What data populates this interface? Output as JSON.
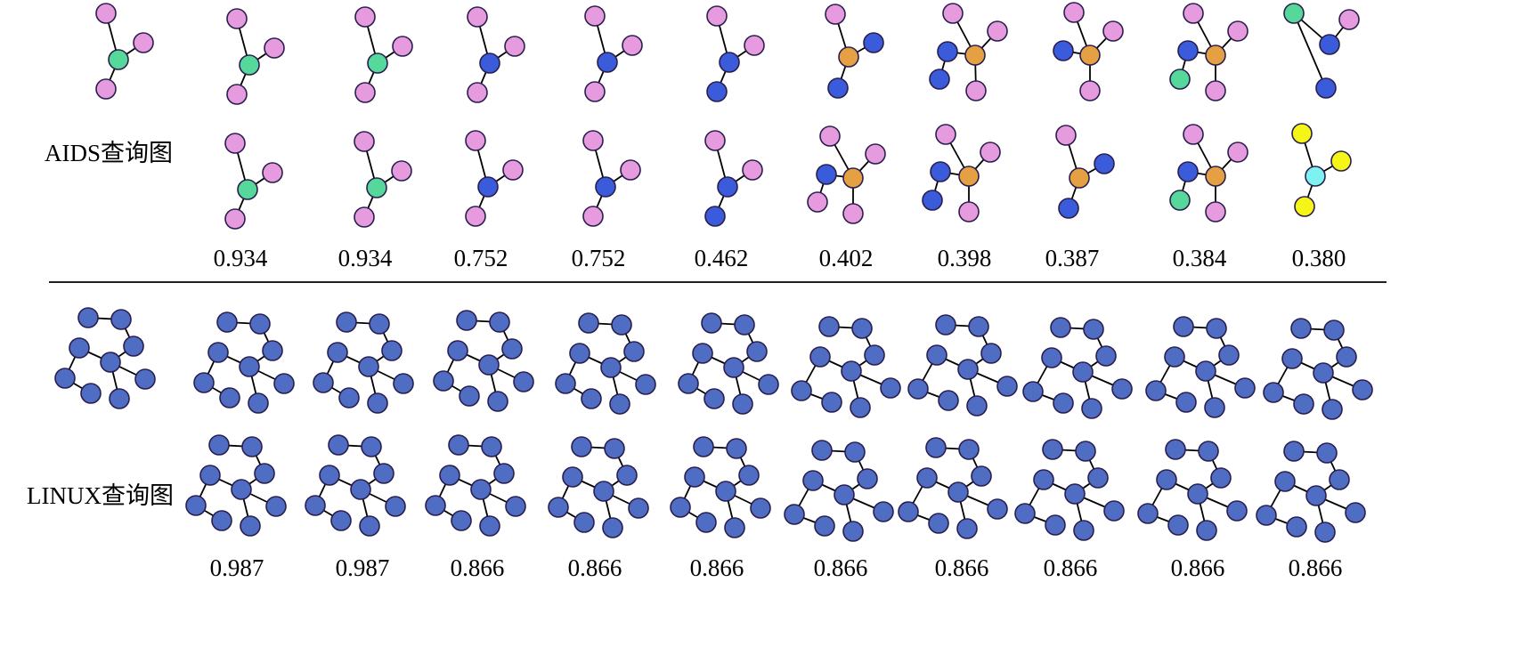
{
  "colors": {
    "pink": "#E59BDE",
    "green": "#56D89A",
    "blue": "#3A5BDA",
    "orange": "#E5A043",
    "yellow": "#F5F517",
    "cyan": "#7EF2F0",
    "linux_blue": "#4F6DC2",
    "outline": "#2A1E4E",
    "edge": "#000000"
  },
  "aids": {
    "label": "AIDS查询图",
    "scores": [
      "0.934",
      "0.934",
      "0.752",
      "0.752",
      "0.462",
      "0.402",
      "0.398",
      "0.387",
      "0.384",
      "0.380"
    ]
  },
  "linux": {
    "label": "LINUX查询图",
    "scores": [
      "0.987",
      "0.987",
      "0.866",
      "0.866",
      "0.866",
      "0.866",
      "0.866",
      "0.866",
      "0.866",
      "0.866"
    ]
  }
}
